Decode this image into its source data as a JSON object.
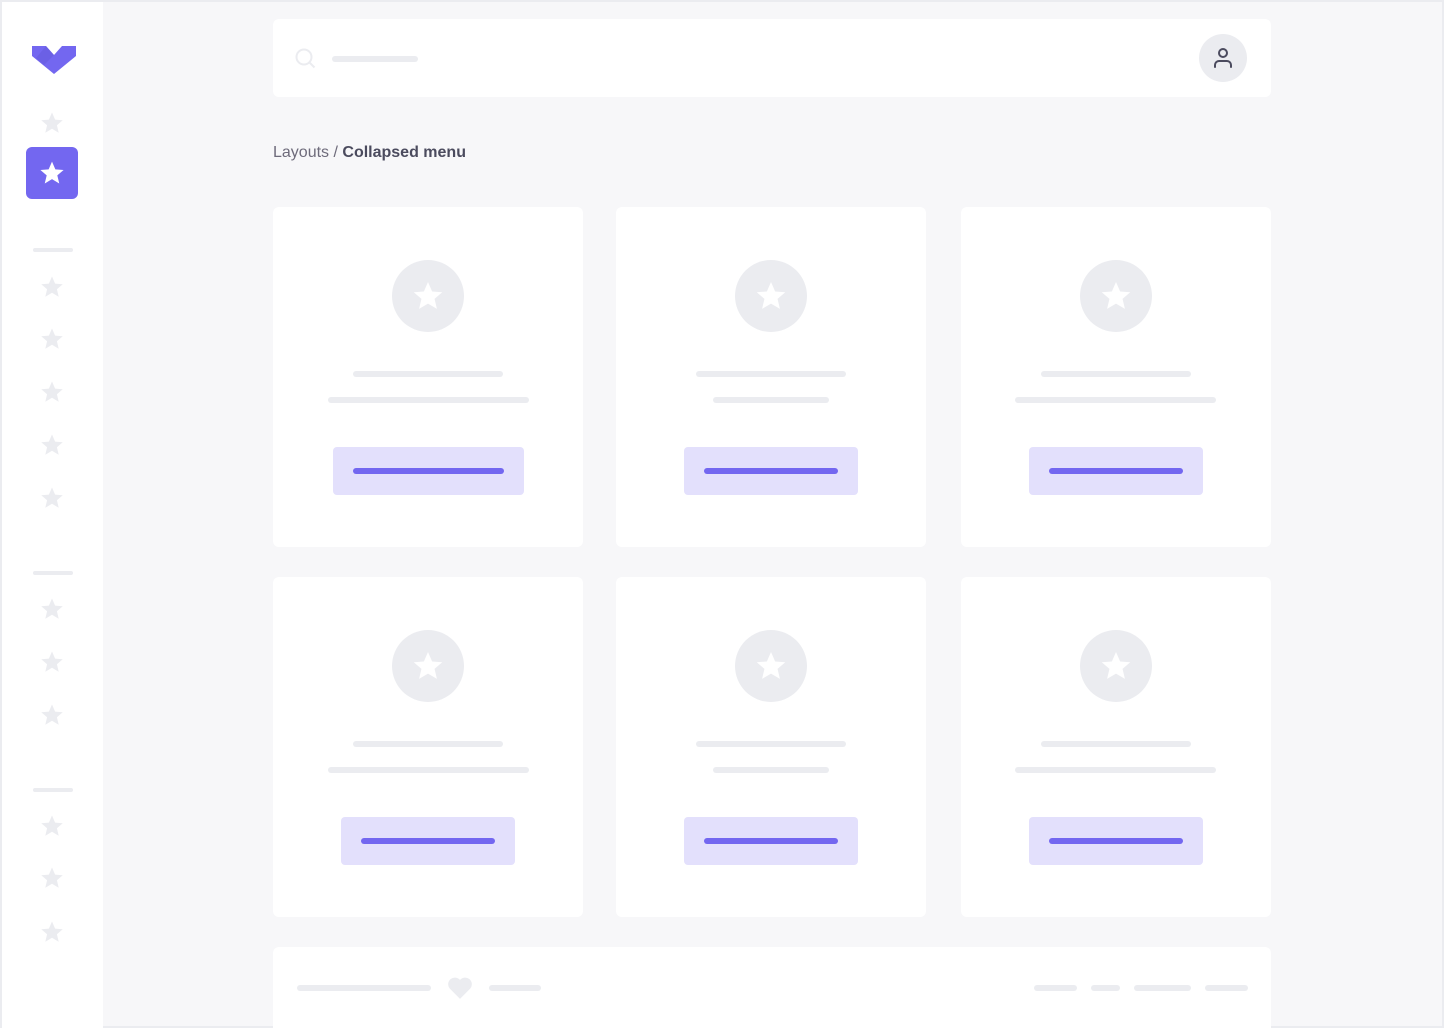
{
  "colors": {
    "accent": "#7367f0",
    "accent_light": "#e3e0fc",
    "placeholder": "#ebecf0",
    "background": "#f7f7f9",
    "text": "#4b4b5e"
  },
  "icons": {
    "logo": "brand-logo-chevron",
    "nav": "star-icon",
    "search": "search-icon",
    "user": "user-icon",
    "footer": "heart-icon"
  },
  "breadcrumb": {
    "parent": "Layouts",
    "separator": " / ",
    "current": "Collapsed menu"
  }
}
